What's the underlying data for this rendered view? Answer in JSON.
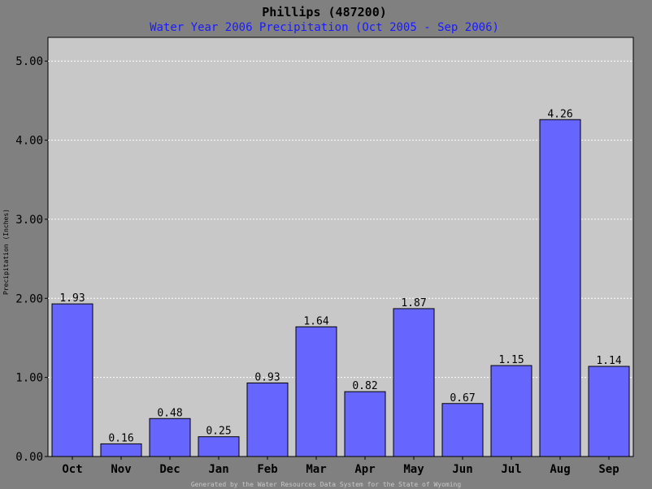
{
  "chart_data": {
    "type": "bar",
    "title": "Phillips (487200)",
    "subtitle": "Water Year 2006 Precipitation (Oct 2005 - Sep 2006)",
    "ylabel": "Precipitation (Inches)",
    "xlabel": "",
    "categories": [
      "Oct",
      "Nov",
      "Dec",
      "Jan",
      "Feb",
      "Mar",
      "Apr",
      "May",
      "Jun",
      "Jul",
      "Aug",
      "Sep"
    ],
    "values": [
      1.93,
      0.16,
      0.48,
      0.25,
      0.93,
      1.64,
      0.82,
      1.87,
      0.67,
      1.15,
      4.26,
      1.14
    ],
    "data_labels": [
      "1.93",
      "0.16",
      "0.48",
      "0.25",
      "0.93",
      "1.64",
      "0.82",
      "1.87",
      "0.67",
      "1.15",
      "4.26",
      "1.14"
    ],
    "ylim": [
      0,
      5.3
    ],
    "yticks": [
      0,
      1,
      2,
      3,
      4,
      5
    ],
    "ytick_labels": [
      "0.00",
      "1.00",
      "2.00",
      "3.00",
      "4.00",
      "5.00"
    ],
    "grid": true,
    "bar_color": "#6666ff",
    "plot_background": "#c8c8c8",
    "page_background": "#808080",
    "footer": "Generated by the Water Resources Data System for the State of Wyoming"
  }
}
